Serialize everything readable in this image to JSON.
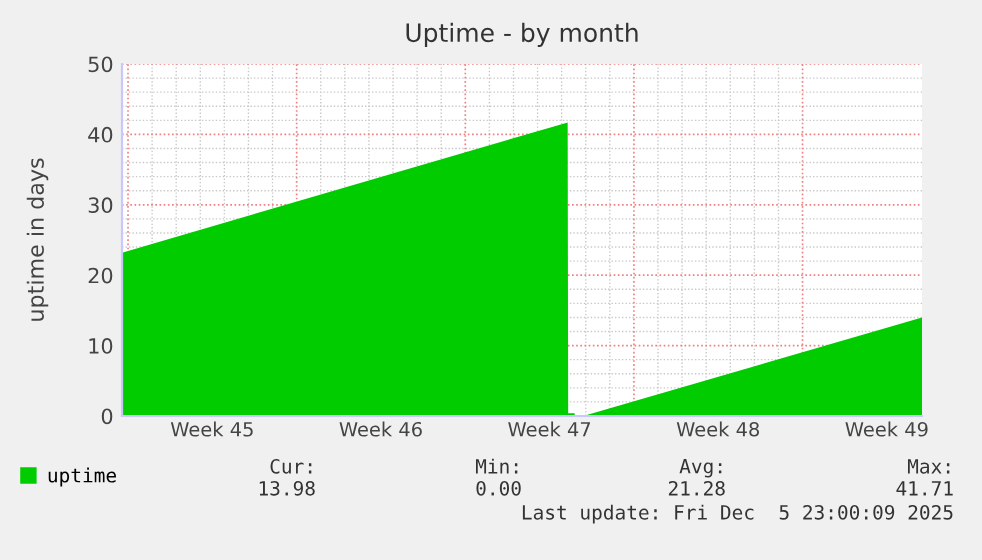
{
  "chart_data": {
    "type": "area",
    "title": "Uptime - by month",
    "ylabel": "uptime in days",
    "x": [
      "2025-11-02T18:00",
      "2025-11-21T06:00",
      "2025-11-21T06:30",
      "2025-11-21T13:00",
      "2025-11-21T14:30",
      "2025-11-21T21:30",
      "2025-12-05T23:00"
    ],
    "series": [
      {
        "name": "uptime",
        "color": "#00cc00",
        "values": [
          23.2,
          41.7,
          0.4,
          0.4,
          null,
          0,
          14.0
        ]
      }
    ],
    "xlim": [
      "2025-11-02T18:00",
      "2025-12-05T23:00"
    ],
    "xticks": [
      {
        "value": "2025-11-03",
        "label": null
      },
      {
        "value": "2025-11-06T12:00",
        "label": "Week 45"
      },
      {
        "value": "2025-11-10",
        "label": null
      },
      {
        "value": "2025-11-13T12:00",
        "label": "Week 46"
      },
      {
        "value": "2025-11-17",
        "label": null
      },
      {
        "value": "2025-11-20T12:00",
        "label": "Week 47"
      },
      {
        "value": "2025-11-24",
        "label": null
      },
      {
        "value": "2025-11-27T12:00",
        "label": "Week 48"
      },
      {
        "value": "2025-12-01",
        "label": null
      },
      {
        "value": "2025-12-04T12:00",
        "label": "Week 49"
      }
    ],
    "ylim": [
      0,
      50
    ],
    "yticks": [
      0,
      10,
      20,
      30,
      40,
      50
    ],
    "grid": true,
    "legend": "bottom left",
    "annotations": [
      "Cur:",
      "13.98",
      "Min:",
      "0.00",
      "Avg:",
      "21.28",
      "Max:",
      "41.71",
      "Last update: Fri Dec  5 23:00:09 2025"
    ]
  }
}
